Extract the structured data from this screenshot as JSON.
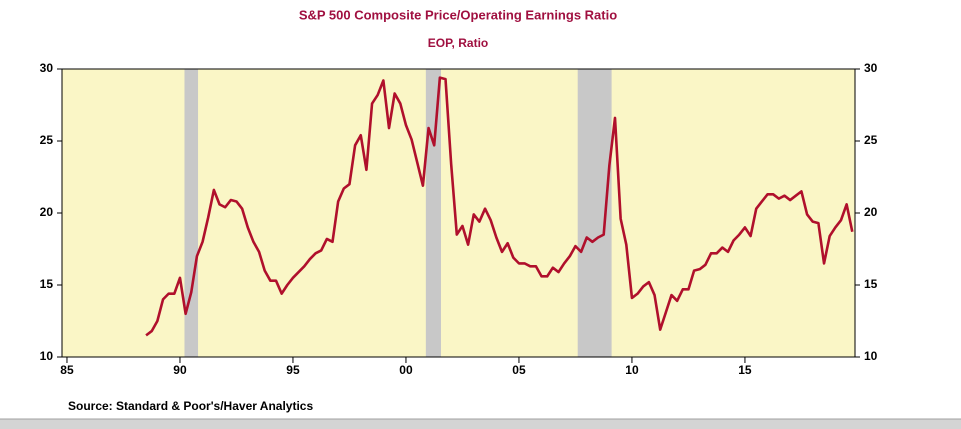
{
  "chart_data": {
    "type": "line",
    "title": "S&P 500 Composite Price/Operating Earnings Ratio",
    "subtitle": "EOP, Ratio",
    "source": "Source:  Standard & Poor's/Haver Analytics",
    "x": [
      1988.5,
      1988.75,
      1989,
      1989.25,
      1989.5,
      1989.75,
      1990,
      1990.25,
      1990.5,
      1990.75,
      1991,
      1991.25,
      1991.5,
      1991.75,
      1992,
      1992.25,
      1992.5,
      1992.75,
      1993,
      1993.25,
      1993.5,
      1993.75,
      1994,
      1994.25,
      1994.5,
      1994.75,
      1995,
      1995.25,
      1995.5,
      1995.75,
      1996,
      1996.25,
      1996.5,
      1996.75,
      1997,
      1997.25,
      1997.5,
      1997.75,
      1998,
      1998.25,
      1998.5,
      1998.75,
      1999,
      1999.25,
      1999.5,
      1999.75,
      2000,
      2000.25,
      2000.5,
      2000.75,
      2001,
      2001.25,
      2001.5,
      2001.75,
      2002,
      2002.25,
      2002.5,
      2002.75,
      2003,
      2003.25,
      2003.5,
      2003.75,
      2004,
      2004.25,
      2004.5,
      2004.75,
      2005,
      2005.25,
      2005.5,
      2005.75,
      2006,
      2006.25,
      2006.5,
      2006.75,
      2007,
      2007.25,
      2007.5,
      2007.75,
      2008,
      2008.25,
      2008.5,
      2008.75,
      2009,
      2009.25,
      2009.5,
      2009.75,
      2010,
      2010.25,
      2010.5,
      2010.75,
      2011,
      2011.25,
      2011.5,
      2011.75,
      2012,
      2012.25,
      2012.5,
      2012.75,
      2013,
      2013.25,
      2013.5,
      2013.75,
      2014,
      2014.25,
      2014.5,
      2014.75,
      2015,
      2015.25,
      2015.5,
      2015.75,
      2016,
      2016.25,
      2016.5,
      2016.75,
      2017,
      2017.25,
      2017.5,
      2017.75,
      2018,
      2018.25,
      2018.5,
      2018.75,
      2019,
      2019.25,
      2019.5,
      2019.75
    ],
    "series": [
      {
        "name": "S&P 500 Composite Price/Operating Earnings Ratio",
        "color": "#b0102c",
        "values": [
          11.5,
          11.8,
          12.5,
          14.0,
          14.4,
          14.4,
          15.5,
          13.0,
          14.5,
          17.0,
          18.0,
          19.7,
          21.6,
          20.6,
          20.4,
          20.9,
          20.8,
          20.3,
          19.0,
          18.0,
          17.3,
          16.0,
          15.3,
          15.3,
          14.4,
          15.0,
          15.5,
          15.9,
          16.3,
          16.8,
          17.2,
          17.4,
          18.2,
          18.0,
          20.8,
          21.7,
          22.0,
          24.7,
          25.4,
          23.0,
          27.6,
          28.2,
          29.2,
          25.9,
          28.3,
          27.6,
          26.1,
          25.1,
          23.5,
          21.9,
          25.9,
          24.7,
          29.4,
          29.3,
          23.4,
          18.5,
          19.1,
          17.8,
          19.9,
          19.4,
          20.3,
          19.5,
          18.3,
          17.3,
          17.9,
          16.9,
          16.5,
          16.5,
          16.3,
          16.3,
          15.6,
          15.6,
          16.2,
          15.9,
          16.5,
          17.0,
          17.7,
          17.3,
          18.3,
          18.0,
          18.3,
          18.5,
          23.3,
          26.6,
          19.6,
          17.8,
          14.1,
          14.4,
          14.9,
          15.2,
          14.3,
          11.9,
          13.1,
          14.3,
          13.9,
          14.7,
          14.7,
          16.0,
          16.1,
          16.4,
          17.2,
          17.2,
          17.6,
          17.3,
          18.1,
          18.5,
          19.0,
          18.4,
          20.3,
          20.8,
          21.3,
          21.3,
          21.0,
          21.2,
          20.9,
          21.2,
          21.5,
          19.9,
          19.4,
          19.3,
          16.5,
          18.4,
          19.0,
          19.5,
          20.6,
          18.7
        ]
      }
    ],
    "shaded_periods": [
      [
        1990.2,
        1990.8
      ],
      [
        2000.88,
        2001.55
      ],
      [
        2007.6,
        2009.1
      ]
    ],
    "xlim": [
      1984.78,
      2019.87
    ],
    "xticks": [
      {
        "value": 1985,
        "label": "85"
      },
      {
        "value": 1990,
        "label": "90"
      },
      {
        "value": 1995,
        "label": "95"
      },
      {
        "value": 2000,
        "label": "00"
      },
      {
        "value": 2005,
        "label": "05"
      },
      {
        "value": 2010,
        "label": "10"
      },
      {
        "value": 2015,
        "label": "15"
      }
    ],
    "ylim": [
      10,
      30
    ],
    "yticks": [
      10,
      15,
      20,
      25,
      30
    ],
    "plot_color": "#faf6c6",
    "shade_color": "#c8c8c8"
  }
}
